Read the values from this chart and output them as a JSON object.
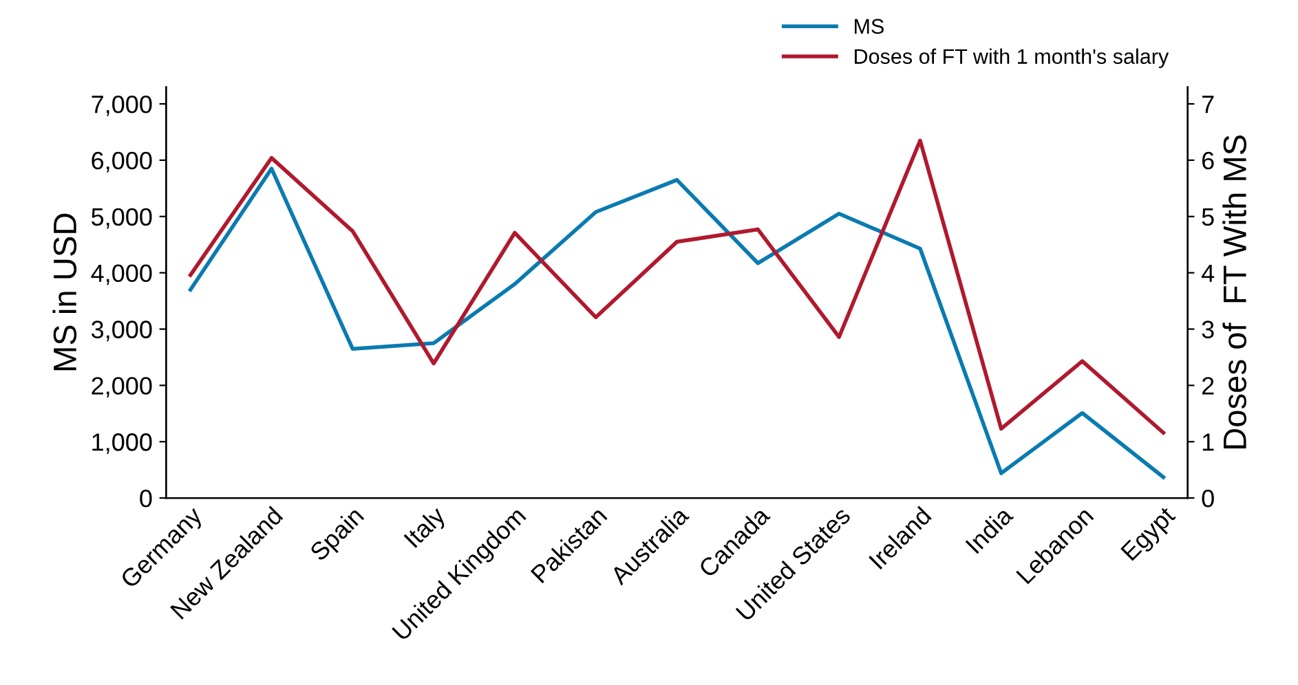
{
  "chart_data": {
    "type": "line",
    "ylabel": "MS in USD",
    "y2label": "Doses of  FT With MS",
    "categories": [
      "Germany",
      "New Zealand",
      "Spain",
      "Italy",
      "United Kingdom",
      "Pakistan",
      "Australia",
      "Canada",
      "United States",
      "Ireland",
      "India",
      "Lebanon",
      "Egypt"
    ],
    "series": [
      {
        "name": "MS",
        "color": "#0a7bb0",
        "values": [
          3700,
          5850,
          2650,
          2750,
          3800,
          5080,
          5650,
          4170,
          5050,
          4430,
          440,
          1510,
          370
        ]
      },
      {
        "name": "Doses of FT with 1 month's salary",
        "color": "#b0192e",
        "axis": "y2",
        "values": [
          3.96,
          6.04,
          4.74,
          2.39,
          4.71,
          3.21,
          4.55,
          4.77,
          2.86,
          6.35,
          1.23,
          2.43,
          1.16
        ]
      }
    ],
    "ylim": [
      0,
      7300
    ],
    "yticks": [
      {
        "value": 0,
        "label": "0"
      },
      {
        "value": 1000,
        "label": "1,000"
      },
      {
        "value": 2000,
        "label": "2,000"
      },
      {
        "value": 3000,
        "label": "3,000"
      },
      {
        "value": 4000,
        "label": "4,000"
      },
      {
        "value": 5000,
        "label": "5,000"
      },
      {
        "value": 6000,
        "label": "6,000"
      },
      {
        "value": 7000,
        "label": "7,000"
      }
    ],
    "y2lim": [
      0,
      7.3
    ],
    "y2ticks": [
      0,
      1,
      2,
      3,
      4,
      5,
      6,
      7
    ],
    "legend": "top right",
    "grid": false,
    "marker": "none",
    "line_style": "solid"
  }
}
